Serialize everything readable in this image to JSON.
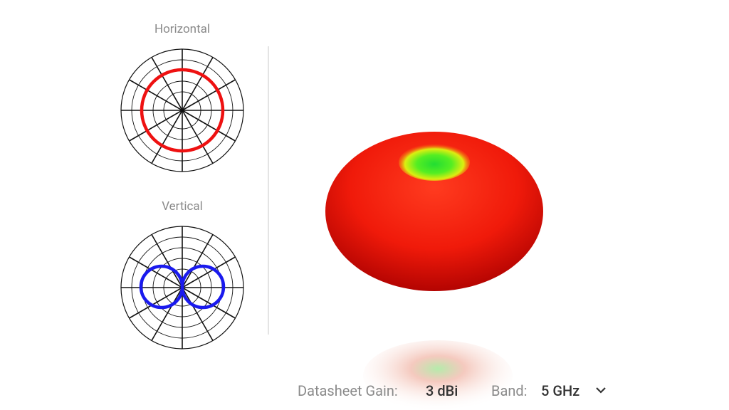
{
  "polar_plots": [
    {
      "label": "Horizontal"
    },
    {
      "label": "Vertical"
    }
  ],
  "footer": {
    "gain_label": "Datasheet Gain:",
    "gain_value": "3 dBi",
    "band_label": "Band:",
    "band_value": "5 GHz"
  }
}
